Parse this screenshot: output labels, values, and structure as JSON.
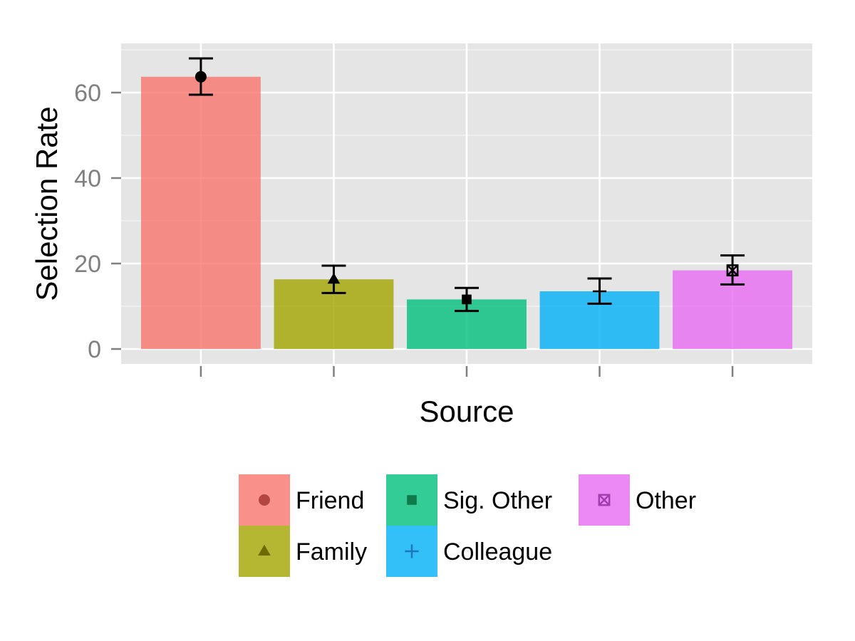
{
  "chart_data": {
    "type": "bar",
    "categories": [
      "Friend",
      "Family",
      "Sig. Other",
      "Colleague",
      "Other"
    ],
    "values": [
      63.7,
      16.3,
      11.6,
      13.5,
      18.4
    ],
    "error_low": [
      59.5,
      13.1,
      8.9,
      10.6,
      15.1
    ],
    "error_high": [
      68.0,
      19.5,
      14.3,
      16.5,
      21.9
    ],
    "colors": [
      "#F8766D",
      "#A3A500",
      "#00BF7D",
      "#00B0F6",
      "#E76BF3"
    ],
    "marker_colors": [
      "#B34740",
      "#6B6B00",
      "#0F7A4A",
      "#1A78B8",
      "#A040B0"
    ],
    "shapes": [
      "circle",
      "triangle",
      "square",
      "plus",
      "square-cross"
    ],
    "xlabel": "Source",
    "ylabel": "Selection Rate",
    "ylim": [
      -3.5,
      71.5
    ],
    "yticks": [
      0,
      20,
      40,
      60
    ],
    "yticklabels": [
      "0",
      "20",
      "40",
      "60"
    ],
    "grid": true,
    "panel_color": "#E5E5E5",
    "legend_position": "bottom",
    "legend": [
      "Friend",
      "Family",
      "Sig. Other",
      "Colleague",
      "Other"
    ]
  }
}
